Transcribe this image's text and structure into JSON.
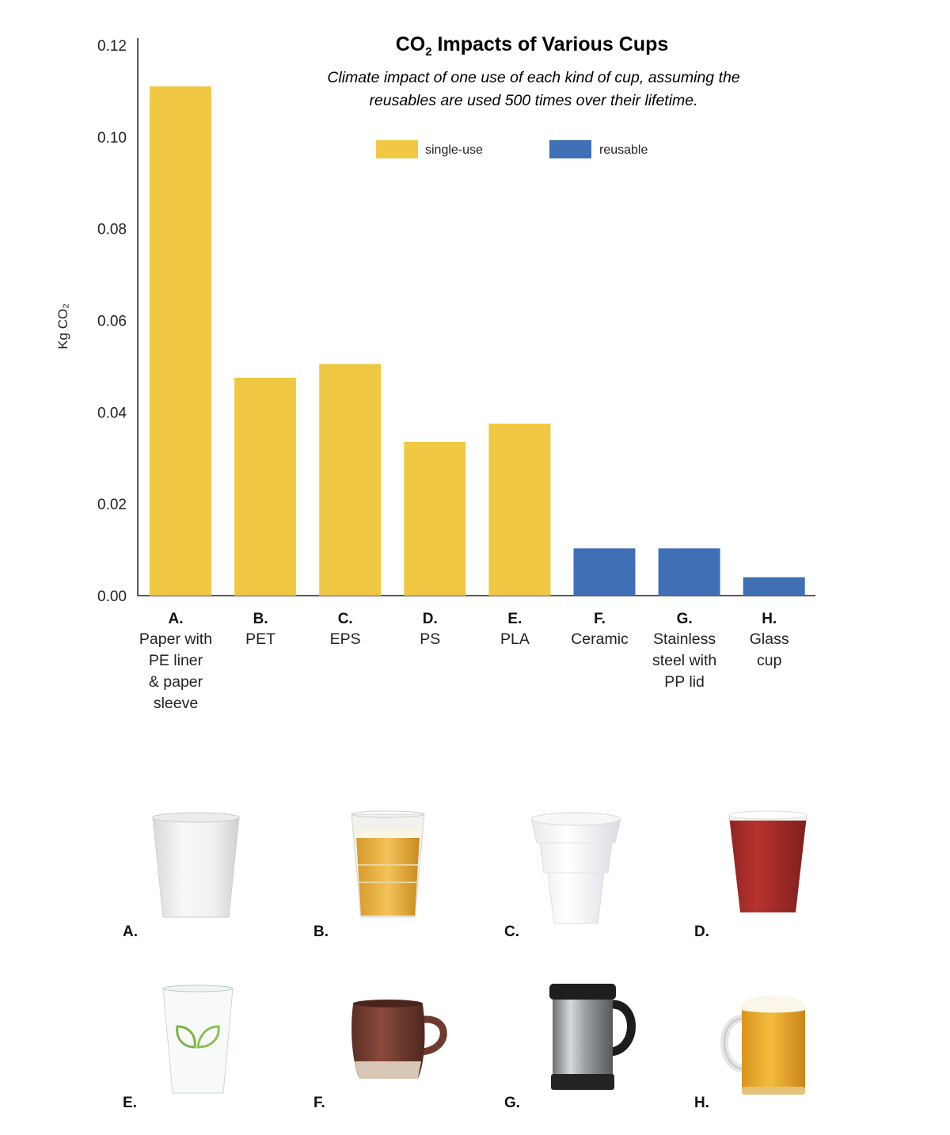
{
  "chart_data": {
    "type": "bar",
    "title_main": "CO",
    "title_sub": "2",
    "title_rest": " Impacts of Various Cups",
    "subtitle_line1": "Climate impact of one use of each kind of cup, assuming the",
    "subtitle_line2": "reusables are used 500 times over their lifetime.",
    "ylabel": "Kg CO₂",
    "ylim": [
      0,
      0.12
    ],
    "yticks": [
      "0.00",
      "0.02",
      "0.04",
      "0.06",
      "0.08",
      "0.10",
      "0.12"
    ],
    "legend": [
      {
        "name": "single-use",
        "color": "#F0C843"
      },
      {
        "name": "reusable",
        "color": "#3F6FB5"
      }
    ],
    "legend_placement": "top-center",
    "grid": false,
    "categories": [
      {
        "letter": "A.",
        "lines": [
          "Paper with",
          "PE liner",
          "& paper",
          "sleeve"
        ],
        "value": 0.111,
        "group": "single-use"
      },
      {
        "letter": "B.",
        "lines": [
          "PET"
        ],
        "value": 0.0475,
        "group": "single-use"
      },
      {
        "letter": "C.",
        "lines": [
          "EPS"
        ],
        "value": 0.0505,
        "group": "single-use"
      },
      {
        "letter": "D.",
        "lines": [
          "PS"
        ],
        "value": 0.0335,
        "group": "single-use"
      },
      {
        "letter": "E.",
        "lines": [
          "PLA"
        ],
        "value": 0.0375,
        "group": "single-use"
      },
      {
        "letter": "F.",
        "lines": [
          "Ceramic"
        ],
        "value": 0.0103,
        "group": "reusable"
      },
      {
        "letter": "G.",
        "lines": [
          "Stainless",
          "steel with",
          "PP lid"
        ],
        "value": 0.0103,
        "group": "reusable"
      },
      {
        "letter": "H.",
        "lines": [
          "Glass",
          "cup"
        ],
        "value": 0.004,
        "group": "reusable"
      }
    ]
  },
  "cups": [
    {
      "letter": "A.",
      "icon": "paper-cup-icon"
    },
    {
      "letter": "B.",
      "icon": "pet-beer-cup-icon"
    },
    {
      "letter": "C.",
      "icon": "foam-cup-icon"
    },
    {
      "letter": "D.",
      "icon": "red-plastic-cup-icon"
    },
    {
      "letter": "E.",
      "icon": "pla-leaf-cup-icon"
    },
    {
      "letter": "F.",
      "icon": "ceramic-mug-icon"
    },
    {
      "letter": "G.",
      "icon": "steel-travel-mug-icon"
    },
    {
      "letter": "H.",
      "icon": "glass-beer-mug-icon"
    }
  ]
}
